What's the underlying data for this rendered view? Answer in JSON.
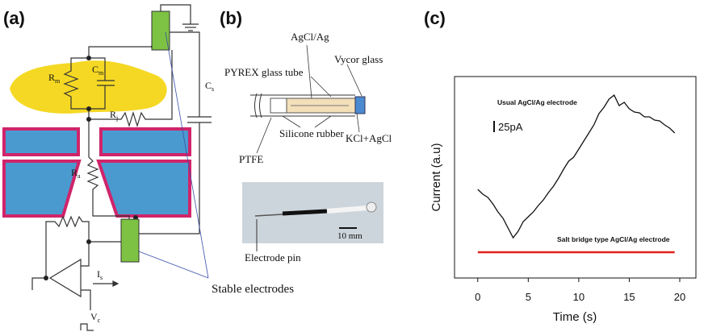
{
  "panel_a": {
    "label": "(a)",
    "symbols": [
      {
        "base": "R",
        "sub": "m"
      },
      {
        "base": "C",
        "sub": "m"
      },
      {
        "base": "R",
        "sub": "j"
      },
      {
        "base": "R",
        "sub": "a"
      },
      {
        "base": "C",
        "sub": "s"
      },
      {
        "base": "I",
        "sub": "s"
      },
      {
        "base": "V",
        "sub": "c"
      }
    ],
    "callout": "Stable electrodes"
  },
  "panel_b": {
    "label": "(b)",
    "labels": [
      "AgCl/Ag",
      "PYREX glass tube",
      "Vycor glass",
      "Silicone rubber",
      "KCl+AgCl",
      "PTFE"
    ],
    "photo_labels": [
      "10 mm",
      "Electrode pin"
    ]
  },
  "chart_data": {
    "type": "line",
    "panel_label": "(c)",
    "x_label": "Time (s)",
    "y_label": "Current (a.u)",
    "scale_bar": "25pA",
    "xlim": [
      -2.3,
      21.6
    ],
    "xticks": [
      0,
      5,
      10,
      15,
      20
    ],
    "ylim": [
      0,
      250
    ],
    "series": [
      {
        "name": "Usual AgCl/Ag electrode",
        "color": "#111111",
        "x": [
          0,
          0.5,
          1,
          1.5,
          2,
          2.5,
          3,
          3.5,
          4,
          4.5,
          5,
          5.5,
          6,
          6.5,
          7,
          7.5,
          8,
          8.5,
          9,
          9.5,
          10,
          10.5,
          11,
          11.5,
          12,
          12.5,
          13,
          13.5,
          14,
          14.5,
          15,
          15.5,
          16,
          16.5,
          17,
          17.5,
          18,
          18.5,
          19,
          19.5
        ],
        "values": [
          110,
          104,
          100,
          92,
          82,
          74,
          62,
          50,
          58,
          70,
          76,
          82,
          90,
          97,
          106,
          114,
          124,
          135,
          145,
          150,
          160,
          170,
          180,
          190,
          204,
          212,
          222,
          227,
          214,
          218,
          210,
          206,
          205,
          200,
          200,
          196,
          195,
          190,
          186,
          180
        ]
      },
      {
        "name": "Salt bridge type AgCl/Ag electrode",
        "color": "#e0201a",
        "x": [
          0,
          19.5
        ],
        "values": [
          32,
          32
        ]
      }
    ]
  }
}
